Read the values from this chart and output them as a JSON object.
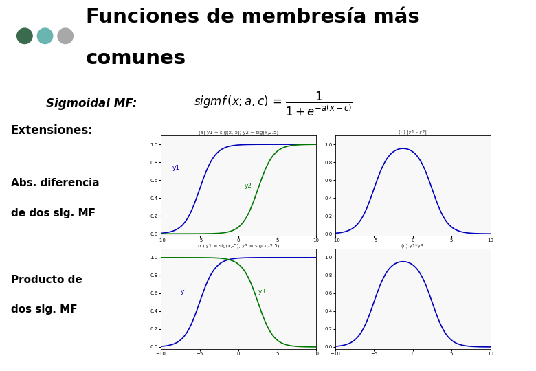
{
  "title_line1": "Funciones de membresía más",
  "title_line2": "comunes",
  "subtitle": "Sigmoidal MF:",
  "ext_title": "Extensiones:",
  "abs_label1": "Abs. diferencia",
  "abs_label2": "de dos sig. MF",
  "prod_label1": "Producto de",
  "prod_label2": "dos sig. MF",
  "white": "#ffffff",
  "blue": "#0000bb",
  "green": "#007700",
  "dot_colors": [
    "#3a6b4e",
    "#6ab5b0",
    "#a8a8a8"
  ],
  "bar_color": "#444444",
  "xmin": -10,
  "xmax": 10
}
